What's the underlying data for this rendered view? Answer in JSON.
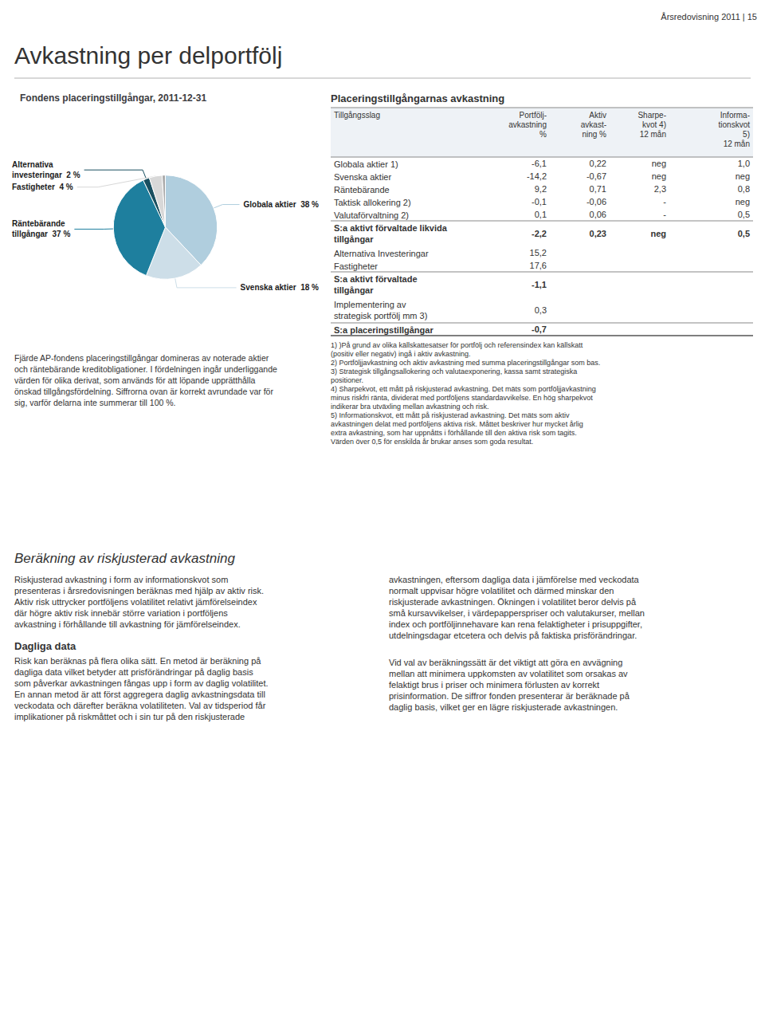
{
  "chart_data": {
    "type": "pie",
    "title": "Fondens placeringstillgångar, 2011-12-31",
    "categories": [
      "Globala aktier  38 %",
      "Svenska aktier  18 %",
      "Räntebärande\ntillgångar  37 %",
      "Alternativa\ninvesteringar  2 %",
      "Fastigheter  4 %",
      null
    ],
    "values": [
      38,
      18,
      37,
      2,
      4,
      1
    ],
    "colors": [
      "#b0cede",
      "#cddee8",
      "#1e7f9e",
      "#194f60",
      "#d8d8d8",
      "#aaaaaa"
    ]
  },
  "page": {
    "header_text": "Årsredovisning 2011 | 15",
    "title": "Avkastning per delportfölj",
    "left_texts": [
      "Fjärde AP-fondens placeringstillgångar domineras av noterade aktier",
      "och räntebärande kreditobligationer. I fördelningen ingår underliggande",
      "värden för olika derivat, som används för att löpande upprätthålla",
      "önskad tillgångsfördelning. Siffrorna ovan är korrekt avrundade var för",
      "sig, varför delarna inte summerar till 100 %."
    ],
    "section2_title": "Beräkning av riskjusterad avkastning",
    "body_left_lines": [
      "Riskjusterad avkastning i form av informationskvot som",
      "presenteras i årsredovisningen beräknas med hjälp av aktiv risk.",
      "Aktiv risk uttrycker portföljens volatilitet relativt jämförelseindex",
      "där högre aktiv risk innebär större variation i portföljens",
      "avkastning i förhållande till avkastning för jämförelseindex."
    ],
    "daglig_title": "Dagliga data",
    "daglig_body_lines": [
      "Risk kan beräknas på flera olika sätt. En metod är beräkning på",
      "dagliga data vilket betyder att prisförändringar på daglig basis",
      "som påverkar avkastningen fångas upp i form av daglig volatilitet.",
      "En annan metod är att först aggregera daglig avkastningsdata till",
      "veckodata och därefter beräkna volatiliteten. Val av tidsperiod får",
      "implikationer på riskmåttet och i sin tur på den riskjusterade"
    ],
    "right_lines_top": [
      "avkastningen, eftersom dagliga data i jämförelse med veckodata",
      "normalt uppvisar högre volatilitet och därmed minskar den",
      "riskjusterade avkastningen. Ökningen i volatilitet beror delvis på",
      "små kursavvikelser, i värdepapperspriser och valutakurser, mellan",
      "index och portföljinnehavare kan rena felaktigheter i prisuppgifter,",
      "utdelningsdagar etcetera och delvis på faktiska prisförändringar."
    ],
    "right_lines_bot": [
      "Vid val av beräkningssätt är det viktigt att göra en avvägning",
      "mellan att minimera uppkomsten av volatilitet som orsakas av",
      "felaktigt brus i priser och minimera förlusten av korrekt",
      "prisinformation. De siffror fonden presenterar är beräknade på",
      "daglig basis, vilket ger en lägre riskjusterade avkastningen."
    ]
  },
  "table": {
    "title": "Placeringstillgångarnas avkastning",
    "columns": [
      "Tillgångsslag",
      "Portfölj-\navkastning\n%",
      "Aktiv\navkast-\nning %",
      "Sharpe-\nkvot 4)\n12 mån",
      "Informa-\ntionskvot\n5)\n12 mån"
    ],
    "rows": [
      {
        "label": "Globala aktier 1)",
        "values": [
          "-6,1",
          "0,22",
          "neg",
          "1,0"
        ],
        "bold": false
      },
      {
        "label": "Svenska aktier",
        "values": [
          "-14,2",
          "-0,67",
          "neg",
          "neg"
        ],
        "bold": false
      },
      {
        "label": "Räntebärande",
        "values": [
          "9,2",
          "0,71",
          "2,3",
          "0,8"
        ],
        "bold": false
      },
      {
        "label": "Taktisk allokering 2)",
        "values": [
          "-0,1",
          "-0,06",
          "-",
          "neg"
        ],
        "bold": false
      },
      {
        "label": "Valutaförvaltning 2)",
        "values": [
          "0,1",
          "0,06",
          "-",
          "0,5"
        ],
        "bold": false
      },
      {
        "label": "S:a aktivt förvaltade likvida\ntillgångar",
        "values": [
          "-2,2",
          "0,23",
          "neg",
          "0,5"
        ],
        "bold": true
      },
      {
        "label": "Alternativa Investeringar",
        "values": [
          "15,2",
          null,
          null,
          null
        ],
        "bold": false
      },
      {
        "label": "Fastigheter",
        "values": [
          "17,6",
          null,
          null,
          null
        ],
        "bold": false
      },
      {
        "label": "S:a aktivt förvaltade\ntillgångar",
        "values": [
          "-1,1",
          null,
          null,
          null
        ],
        "bold": true
      },
      {
        "label": "Implementering av\nstrategisk portfölj mm 3)",
        "values": [
          "0,3",
          null,
          null,
          null
        ],
        "bold": false
      },
      {
        "label": "S:a placeringstillgångar",
        "values": [
          "-0,7",
          null,
          null,
          null
        ],
        "bold": true
      }
    ],
    "footnotes": [
      "1) )På grund av olika källskattesatser för portfölj och referensindex kan källskatt",
      "(positiv eller negativ) ingå i aktiv avkastning.",
      "2) Portföljjavkastning och aktiv avkastning med summa placeringstillgångar som bas.",
      "3) Strategisk tillgångsallokering och valutaexponering, kassa samt strategiska",
      "positioner.",
      "4) Sharpekvot, ett mått på riskjusterad avkastning. Det mäts som portföljjavkastning",
      "minus riskfri ränta, dividerat med portföljens standardavvikelse. En hög sharpekvot",
      "indikerar bra utväxling mellan avkastning och risk.",
      "5) Informationskvot, ett mått på riskjusterad avkastning. Det mäts som aktiv",
      "avkastningen delat med portföljens aktiva risk. Måttet beskriver hur mycket årlig",
      "extra avkastning, som har uppnåtts i förhållande till den aktiva risk som tagits.",
      "Värden över 0,5 för enskilda år brukar anses som goda resultat."
    ]
  }
}
